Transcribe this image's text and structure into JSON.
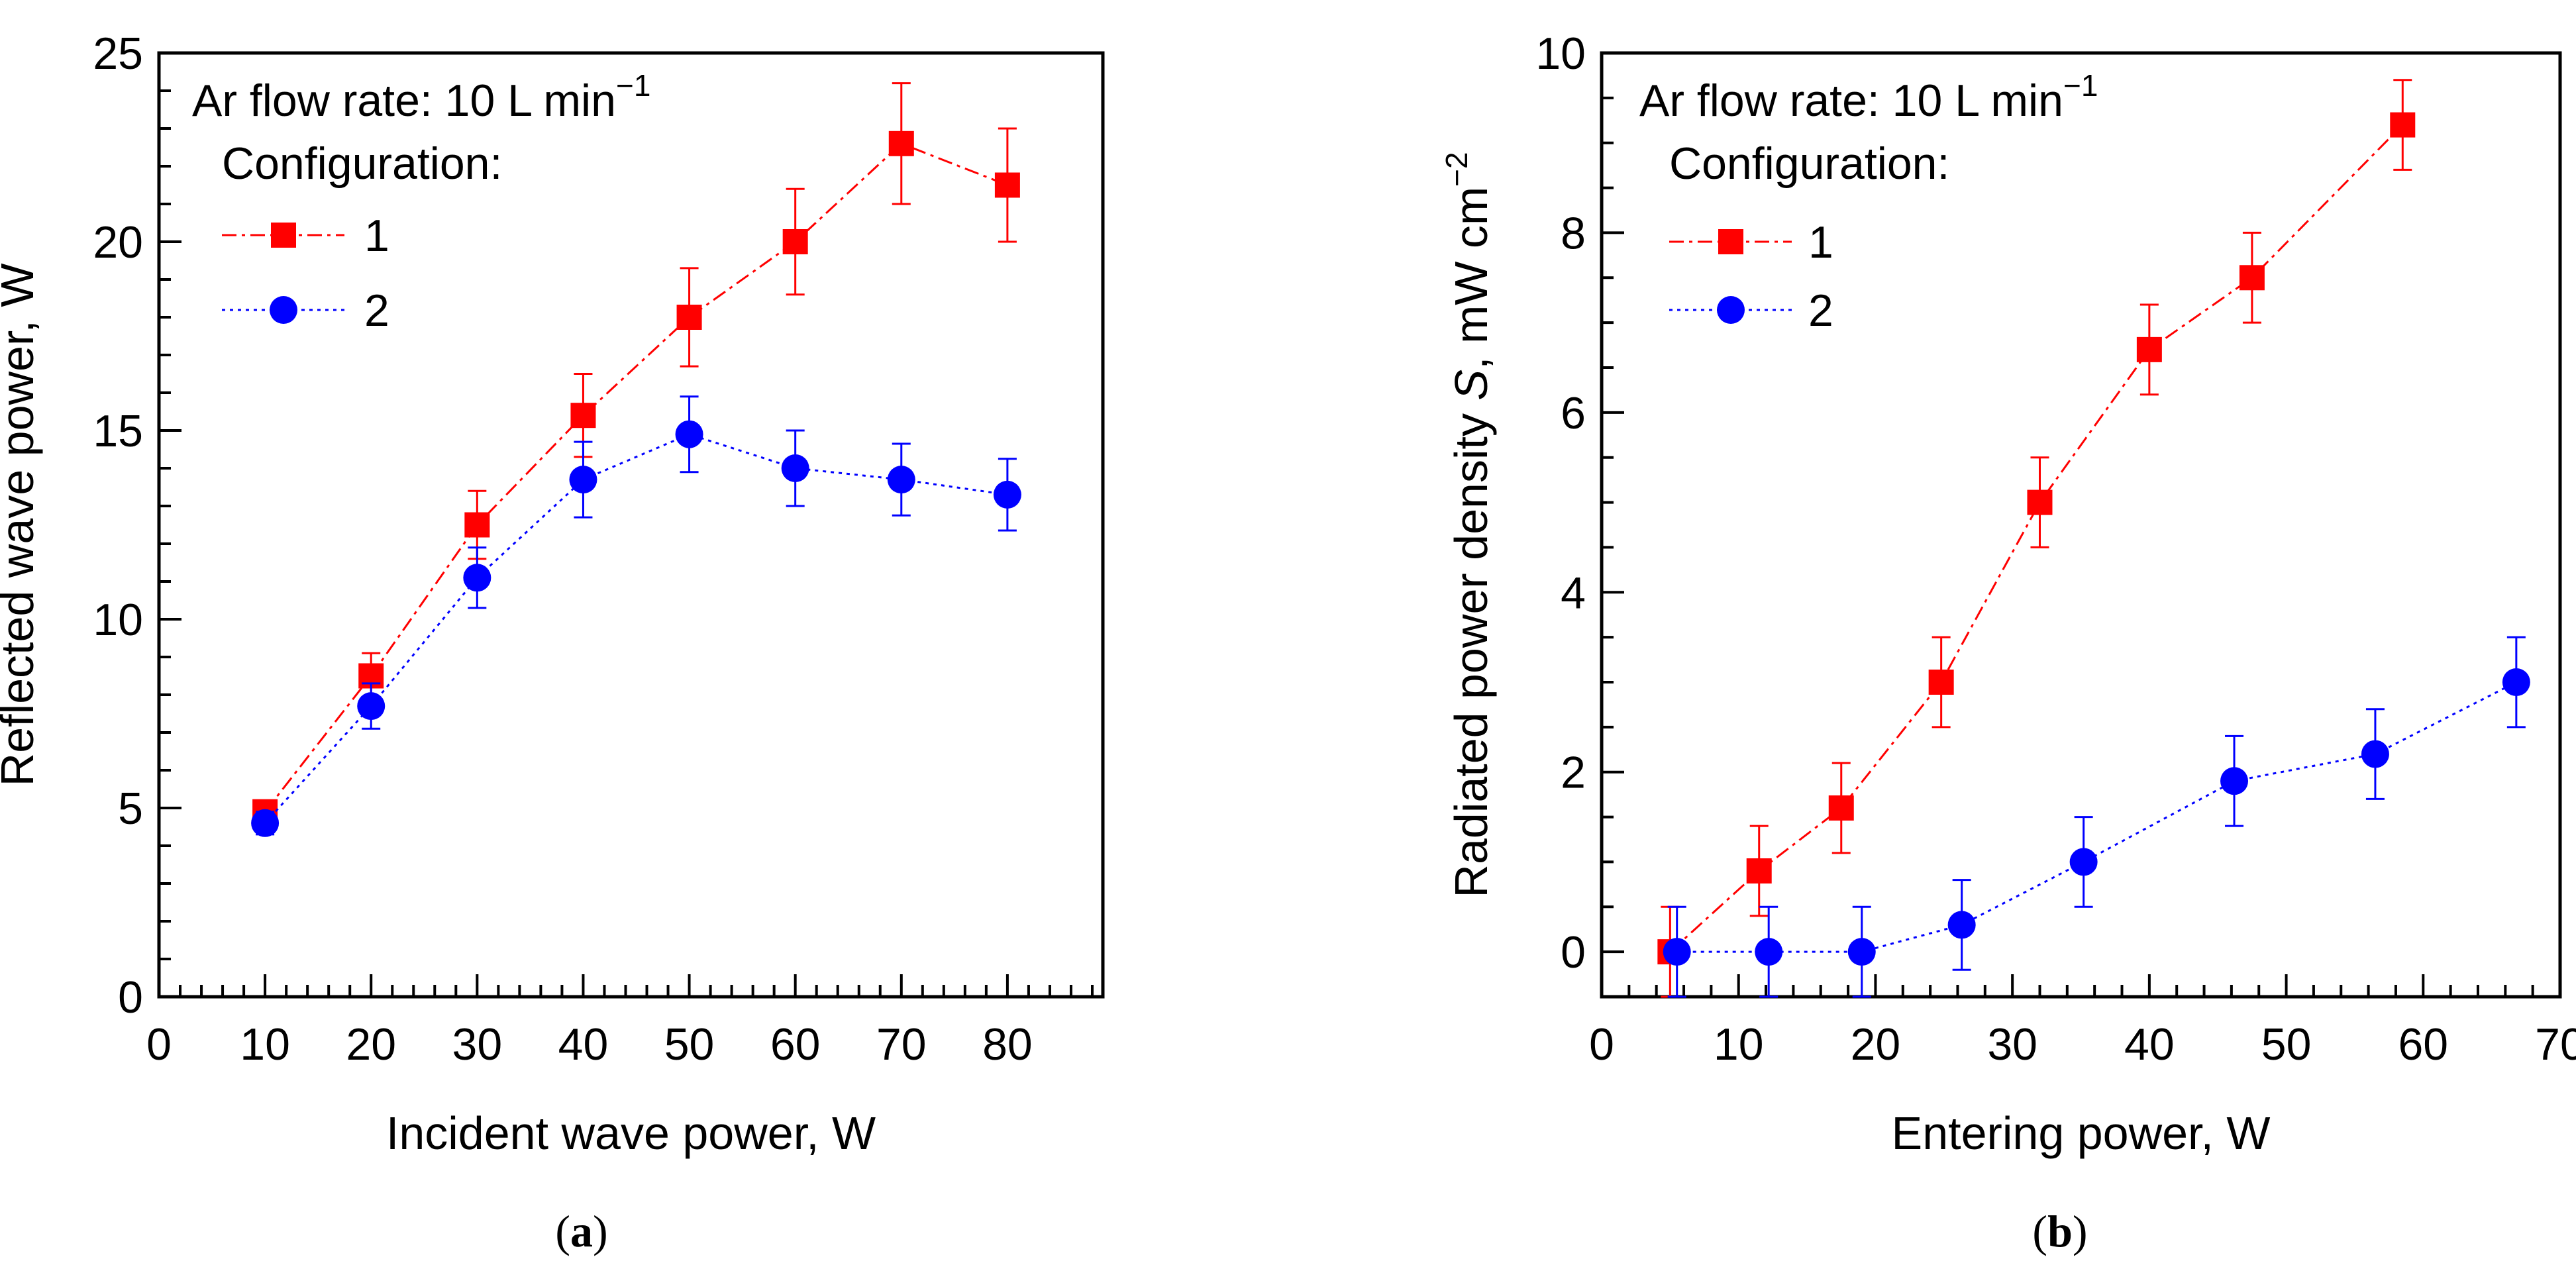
{
  "chart_data": [
    {
      "type": "scatter",
      "panel_label": "(a)",
      "xlabel": "Incident wave power, W",
      "ylabel": "Reflected wave power, W",
      "xlim": [
        0,
        89
      ],
      "ylim": [
        0,
        25
      ],
      "xticks": [
        0,
        10,
        20,
        30,
        40,
        50,
        60,
        70,
        80
      ],
      "yticks": [
        0,
        5,
        10,
        15,
        20,
        25
      ],
      "x_minor_step": 2,
      "y_minor_step": 1,
      "annotation": {
        "text": "Ar flow rate: 10 L min",
        "sup": "−1"
      },
      "legend_title": "Configuration:",
      "series": [
        {
          "name": "1",
          "marker": "square",
          "color": "#ff0000",
          "line": "dashdot",
          "x": [
            10,
            20,
            30,
            40,
            50,
            60,
            70,
            80
          ],
          "y": [
            4.9,
            8.5,
            12.5,
            15.4,
            18.0,
            20.0,
            22.6,
            21.5
          ],
          "err": [
            0.3,
            0.6,
            0.9,
            1.1,
            1.3,
            1.4,
            1.6,
            1.5
          ]
        },
        {
          "name": "2",
          "marker": "circle",
          "color": "#0000ff",
          "line": "dotted",
          "x": [
            10,
            20,
            30,
            40,
            50,
            60,
            70,
            80
          ],
          "y": [
            4.6,
            7.7,
            11.1,
            13.7,
            14.9,
            14.0,
            13.7,
            13.3
          ],
          "err": [
            0.3,
            0.6,
            0.8,
            1.0,
            1.0,
            1.0,
            0.95,
            0.95
          ]
        }
      ]
    },
    {
      "type": "scatter",
      "panel_label": "(b)",
      "xlabel": "Entering power, W",
      "ylabel": "Radiated power density",
      "ylabel_italic": "S",
      "ylabel_unit": ", mW cm",
      "ylabel_sup": "−2",
      "xlim": [
        0,
        70
      ],
      "ylim": [
        -0.5,
        10
      ],
      "xticks": [
        0,
        10,
        20,
        30,
        40,
        50,
        60,
        70
      ],
      "yticks": [
        0,
        2,
        4,
        6,
        8,
        10
      ],
      "x_minor_step": 2,
      "y_minor_step": 0.5,
      "annotation": {
        "text": "Ar flow rate: 10 L min",
        "sup": "−1"
      },
      "legend_title": "Configuration:",
      "series": [
        {
          "name": "1",
          "marker": "square",
          "color": "#ff0000",
          "line": "dashdot",
          "x": [
            5,
            11.5,
            17.5,
            24.8,
            32,
            40,
            47.5,
            58.5
          ],
          "y": [
            0,
            0.9,
            1.6,
            3.0,
            5.0,
            6.7,
            7.5,
            9.2
          ],
          "err": [
            0.5,
            0.5,
            0.5,
            0.5,
            0.5,
            0.5,
            0.5,
            0.5
          ]
        },
        {
          "name": "2",
          "marker": "circle",
          "color": "#0000ff",
          "line": "dotted",
          "x": [
            5.5,
            12.2,
            19,
            26.3,
            35.2,
            46.2,
            56.5,
            66.8
          ],
          "y": [
            0,
            0,
            0,
            0.3,
            1.0,
            1.9,
            2.2,
            3.0
          ],
          "err": [
            0.5,
            0.5,
            0.5,
            0.5,
            0.5,
            0.5,
            0.5,
            0.5
          ]
        }
      ]
    }
  ]
}
